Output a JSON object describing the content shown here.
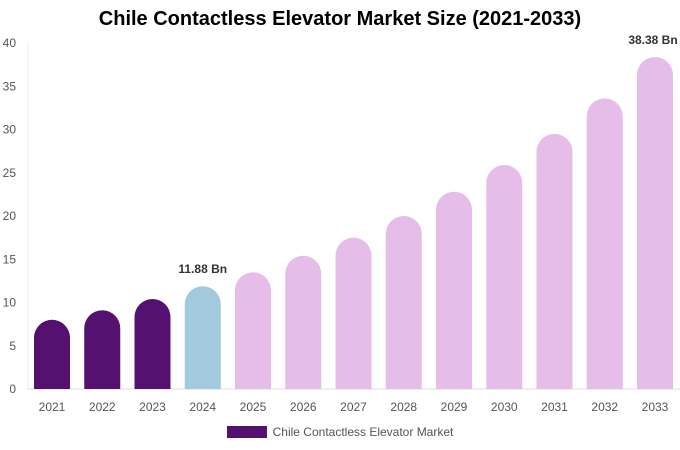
{
  "chart_data": {
    "type": "bar",
    "title": "Chile Contactless Elevator Market Size (2021-2033)",
    "categories": [
      "2021",
      "2022",
      "2023",
      "2024",
      "2025",
      "2026",
      "2027",
      "2028",
      "2029",
      "2030",
      "2031",
      "2032",
      "2033"
    ],
    "series": [
      {
        "name": "Chile Contactless Elevator Market",
        "values": [
          8.0,
          9.1,
          10.4,
          11.88,
          13.5,
          15.4,
          17.5,
          20.0,
          22.8,
          25.9,
          29.5,
          33.6,
          38.38
        ]
      }
    ],
    "bar_colors": [
      "#541170",
      "#541170",
      "#541170",
      "#a3c9de",
      "#e6bde9",
      "#e6bde9",
      "#e6bde9",
      "#e6bde9",
      "#e6bde9",
      "#e6bde9",
      "#e6bde9",
      "#e6bde9",
      "#e6bde9"
    ],
    "legend_color": "#541170",
    "data_labels": [
      {
        "index": 3,
        "text": "11.88 Bn"
      },
      {
        "index": 12,
        "text": "38.38 Bn"
      }
    ],
    "yticks": [
      0,
      5,
      10,
      15,
      20,
      25,
      30,
      35,
      40
    ],
    "ylim": [
      0,
      40
    ],
    "grid": false,
    "legend_position": "bottom"
  }
}
